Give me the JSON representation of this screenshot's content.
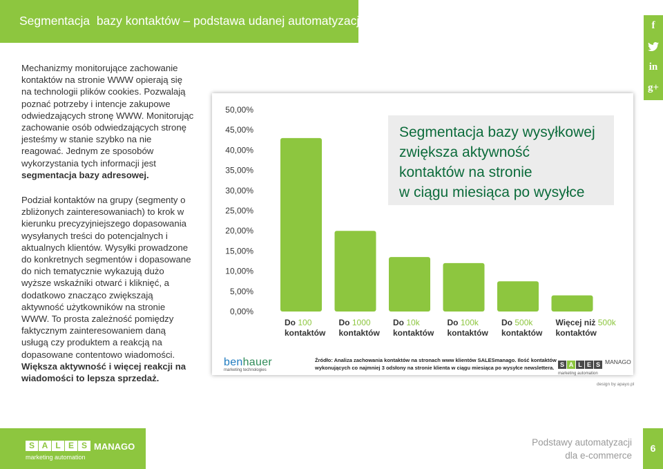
{
  "header": {
    "title": "Segmentacja  bazy kontaktów – podstawa udanej automatyzacji"
  },
  "social": {
    "items": [
      "f",
      "t",
      "in",
      "g+"
    ]
  },
  "left": {
    "p1_normal": "Mechanizmy monitorujące zachowanie kontaktów na stronie WWW opierają się na technologii plików cookies. Pozwalają poznać potrzeby i intencje zakupowe odwiedzających stronę WWW. Monitorując zachowanie osób odwiedzających stronę jesteśmy w stanie szybko na nie reagować. Jednym ze sposobów wykorzystania tych informacji jest ",
    "p1_bold": "segmentacja bazy adresowej.",
    "p2_normal": "Podział kontaktów na grupy (segmenty o zbliżonych zainteresowaniach) to krok w kierunku  precyzyjniejszego dopasowania wysyłanych treści do potencjalnych i aktualnych klientów. Wysyłki prowadzone do konkretnych segmentów i dopasowane do nich tematycznie wykazują dużo wyższe wskaźniki otwarć i kliknięć, a dodatkowo znacząco zwiększają aktywność użytkowników na stronie WWW. To prosta zależność pomiędzy faktycznym zainteresowaniem daną usługą czy produktem a reakcją na dopasowane contentowo wiadomości. ",
    "p2_bold": "Większa aktywność i więcej reakcji na wiadomości to lepsza sprzedaż."
  },
  "chart_data": {
    "type": "bar",
    "categories": [
      [
        "Do ",
        "100",
        "kontaktów"
      ],
      [
        "Do ",
        "1000",
        "kontaktów"
      ],
      [
        "Do ",
        "10k",
        "kontaktów"
      ],
      [
        "Do ",
        "100k",
        "kontaktów"
      ],
      [
        "Do ",
        "500k",
        "kontaktów"
      ],
      [
        "Więcej niż ",
        "500k",
        "kontaktów"
      ]
    ],
    "values": [
      43,
      20,
      13.5,
      12,
      7.5,
      4
    ],
    "yticks": [
      "0,00%",
      "5,00%",
      "10,00%",
      "15,00%",
      "20,00%",
      "25,00%",
      "30,00%",
      "35,00%",
      "40,00%",
      "45,00%",
      "50,00%"
    ],
    "ylim": [
      0,
      50
    ],
    "annotation": [
      "Segmentacja bazy wysyłkowej",
      "zwiększa aktywność",
      "kontaktów na stronie",
      "w ciągu miesiąca po wysyłce"
    ],
    "bar_color": "#8dc63f",
    "accent_text_color": "#8dc63f"
  },
  "source": {
    "line1": "Źródło: Analiza zachowania kontaktów na stronach www klientów SALESmanago. Ilość kontaktów",
    "line2": "wykonujących co najmniej 3 odsłony na stronie klienta w ciągu miesiąca po wysyłce newslettera."
  },
  "logos": {
    "benhauer_a": "ben",
    "benhauer_b": "hauer",
    "benhauer_sub": "marketing technologies",
    "sales_letters": [
      "S",
      "A",
      "L",
      "E",
      "S"
    ],
    "manago": "MANAGO",
    "sub": "marketing automation"
  },
  "credit": "design by apayo.pl",
  "footer": {
    "letters": [
      "S",
      "A",
      "L",
      "E",
      "S"
    ],
    "manago": "MANAGO",
    "sub": "marketing automation",
    "right1": "Podstawy automatyzacji",
    "right2": "dla e-commerce",
    "page": "6"
  }
}
